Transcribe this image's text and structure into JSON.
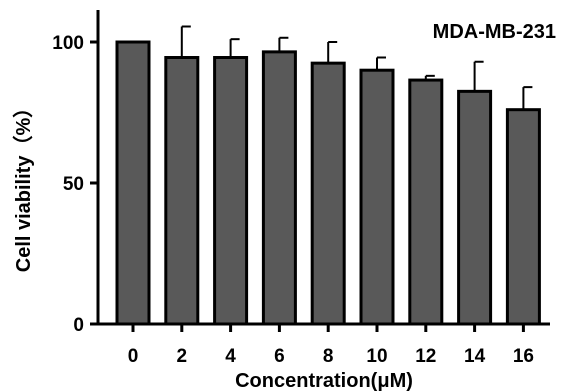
{
  "chart_data": {
    "type": "bar",
    "annotation": "MDA-MB-231",
    "xlabel": "Concentration(μM)",
    "ylabel": "Cell viability（%）",
    "categories": [
      "0",
      "2",
      "4",
      "6",
      "8",
      "10",
      "12",
      "14",
      "16"
    ],
    "values": [
      100,
      94.5,
      94.5,
      96.5,
      92.5,
      90,
      86.5,
      82.5,
      76
    ],
    "error_upper": [
      0,
      11,
      6.5,
      5,
      7.5,
      4.5,
      1.5,
      10.5,
      8
    ],
    "ylim": [
      0,
      100
    ],
    "yticks": [
      "0",
      "50",
      "100"
    ],
    "bar_color": "#595959",
    "edge_color": "#000000",
    "grid": false
  }
}
